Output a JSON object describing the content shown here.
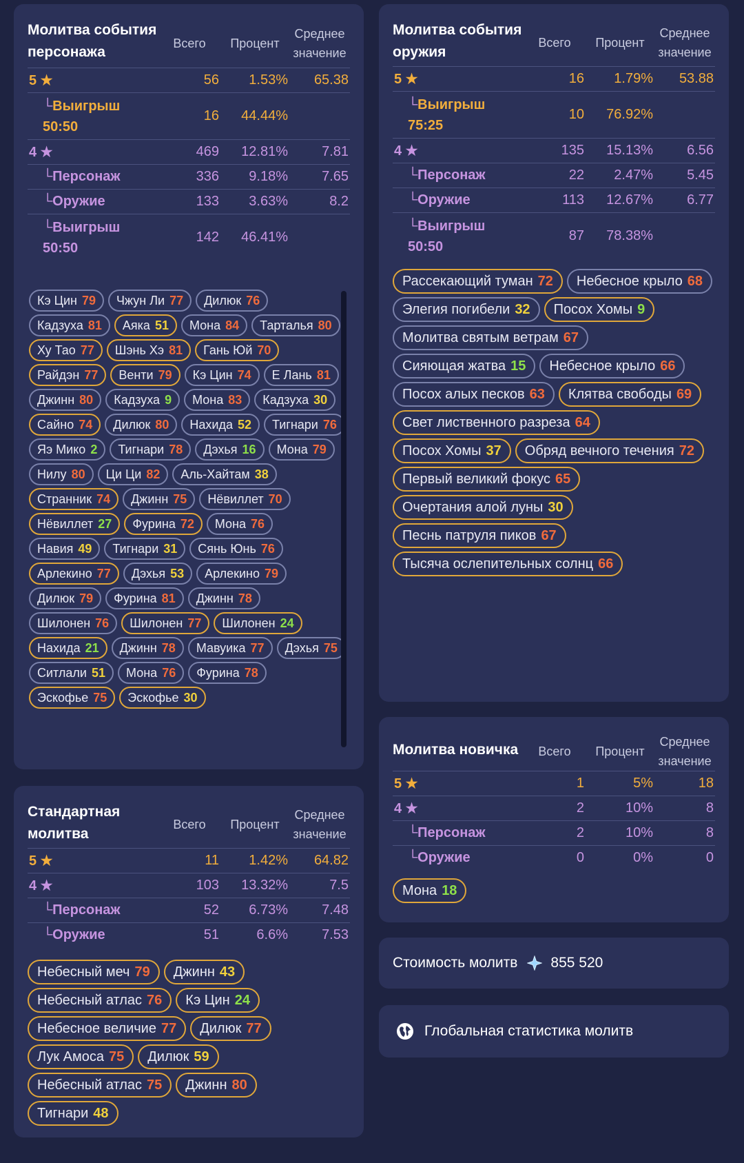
{
  "char_event": {
    "title": "Молитва события персонажа",
    "h_total": "Всего",
    "h_pct": "Процент",
    "h_avg": "Среднее значение",
    "r5": {
      "label": "5 ★",
      "total": "56",
      "pct": "1.53%",
      "avg": "65.38"
    },
    "r5w": {
      "label": "Выигрыш 50:50",
      "total": "16",
      "pct": "44.44%",
      "avg": ""
    },
    "r4": {
      "label": "4 ★",
      "total": "469",
      "pct": "12.81%",
      "avg": "7.81"
    },
    "r4c": {
      "label": "Персонаж",
      "total": "336",
      "pct": "9.18%",
      "avg": "7.65"
    },
    "r4w": {
      "label": "Оружие",
      "total": "133",
      "pct": "3.63%",
      "avg": "8.2"
    },
    "r4x": {
      "label": "Выигрыш 50:50",
      "total": "142",
      "pct": "46.41%",
      "avg": ""
    },
    "pulls": [
      {
        "name": "Кэ Цин",
        "n": "79",
        "c": "r",
        "g": false
      },
      {
        "name": "Чжун Ли",
        "n": "77",
        "c": "r",
        "g": false
      },
      {
        "name": "Дилюк",
        "n": "76",
        "c": "r",
        "g": false
      },
      {
        "name": "Кадзуха",
        "n": "81",
        "c": "r",
        "g": false
      },
      {
        "name": "Аяка",
        "n": "51",
        "c": "y",
        "g": true
      },
      {
        "name": "Мона",
        "n": "84",
        "c": "r",
        "g": false
      },
      {
        "name": "Тарталья",
        "n": "80",
        "c": "r",
        "g": false
      },
      {
        "name": "Ху Тао",
        "n": "77",
        "c": "r",
        "g": true
      },
      {
        "name": "Шэнь Хэ",
        "n": "81",
        "c": "r",
        "g": true
      },
      {
        "name": "Гань Юй",
        "n": "70",
        "c": "r",
        "g": true
      },
      {
        "name": "Райдэн",
        "n": "77",
        "c": "r",
        "g": true
      },
      {
        "name": "Венти",
        "n": "79",
        "c": "r",
        "g": true
      },
      {
        "name": "Кэ Цин",
        "n": "74",
        "c": "r",
        "g": false
      },
      {
        "name": "Е Лань",
        "n": "81",
        "c": "r",
        "g": false
      },
      {
        "name": "Джинн",
        "n": "80",
        "c": "r",
        "g": false
      },
      {
        "name": "Кадзуха",
        "n": "9",
        "c": "gr",
        "g": false
      },
      {
        "name": "Мона",
        "n": "83",
        "c": "r",
        "g": false
      },
      {
        "name": "Кадзуха",
        "n": "30",
        "c": "y",
        "g": false
      },
      {
        "name": "Сайно",
        "n": "74",
        "c": "r",
        "g": true
      },
      {
        "name": "Дилюк",
        "n": "80",
        "c": "r",
        "g": false
      },
      {
        "name": "Нахида",
        "n": "52",
        "c": "y",
        "g": false
      },
      {
        "name": "Тигнари",
        "n": "76",
        "c": "r",
        "g": false
      },
      {
        "name": "Яэ Мико",
        "n": "2",
        "c": "gr",
        "g": false
      },
      {
        "name": "Тигнари",
        "n": "78",
        "c": "r",
        "g": false
      },
      {
        "name": "Дэхья",
        "n": "16",
        "c": "gr",
        "g": false
      },
      {
        "name": "Мона",
        "n": "79",
        "c": "r",
        "g": false
      },
      {
        "name": "Нилу",
        "n": "80",
        "c": "r",
        "g": false
      },
      {
        "name": "Ци Ци",
        "n": "82",
        "c": "r",
        "g": false
      },
      {
        "name": "Аль-Хайтам",
        "n": "38",
        "c": "y",
        "g": false
      },
      {
        "name": "Странник",
        "n": "74",
        "c": "r",
        "g": true
      },
      {
        "name": "Джинн",
        "n": "75",
        "c": "r",
        "g": false
      },
      {
        "name": "Нёвиллет",
        "n": "70",
        "c": "r",
        "g": false
      },
      {
        "name": "Нёвиллет",
        "n": "27",
        "c": "gr",
        "g": true
      },
      {
        "name": "Фурина",
        "n": "72",
        "c": "r",
        "g": true
      },
      {
        "name": "Мона",
        "n": "76",
        "c": "r",
        "g": false
      },
      {
        "name": "Навия",
        "n": "49",
        "c": "y",
        "g": false
      },
      {
        "name": "Тигнари",
        "n": "31",
        "c": "y",
        "g": false
      },
      {
        "name": "Сянь Юнь",
        "n": "76",
        "c": "r",
        "g": false
      },
      {
        "name": "Арлекино",
        "n": "77",
        "c": "r",
        "g": true
      },
      {
        "name": "Дэхья",
        "n": "53",
        "c": "y",
        "g": false
      },
      {
        "name": "Арлекино",
        "n": "79",
        "c": "r",
        "g": false
      },
      {
        "name": "Дилюк",
        "n": "79",
        "c": "r",
        "g": false
      },
      {
        "name": "Фурина",
        "n": "81",
        "c": "r",
        "g": false
      },
      {
        "name": "Джинн",
        "n": "78",
        "c": "r",
        "g": false
      },
      {
        "name": "Шилонен",
        "n": "76",
        "c": "r",
        "g": false
      },
      {
        "name": "Шилонен",
        "n": "77",
        "c": "r",
        "g": true
      },
      {
        "name": "Шилонен",
        "n": "24",
        "c": "gr",
        "g": true
      },
      {
        "name": "Нахида",
        "n": "21",
        "c": "gr",
        "g": true
      },
      {
        "name": "Джинн",
        "n": "78",
        "c": "r",
        "g": false
      },
      {
        "name": "Мавуика",
        "n": "77",
        "c": "r",
        "g": false
      },
      {
        "name": "Дэхья",
        "n": "75",
        "c": "r",
        "g": false
      },
      {
        "name": "Ситлали",
        "n": "51",
        "c": "y",
        "g": false
      },
      {
        "name": "Мона",
        "n": "76",
        "c": "r",
        "g": false
      },
      {
        "name": "Фурина",
        "n": "78",
        "c": "r",
        "g": false
      },
      {
        "name": "Эскофье",
        "n": "75",
        "c": "r",
        "g": true
      },
      {
        "name": "Эскофье",
        "n": "30",
        "c": "y",
        "g": true
      }
    ]
  },
  "standard": {
    "title": "Стандартная молитва",
    "h_total": "Всего",
    "h_pct": "Процент",
    "h_avg": "Среднее значение",
    "r5": {
      "label": "5 ★",
      "total": "11",
      "pct": "1.42%",
      "avg": "64.82"
    },
    "r4": {
      "label": "4 ★",
      "total": "103",
      "pct": "13.32%",
      "avg": "7.5"
    },
    "r4c": {
      "label": "Персонаж",
      "total": "52",
      "pct": "6.73%",
      "avg": "7.48"
    },
    "r4w": {
      "label": "Оружие",
      "total": "51",
      "pct": "6.6%",
      "avg": "7.53"
    },
    "pulls": [
      {
        "name": "Небесный меч",
        "n": "79",
        "c": "r",
        "g": true
      },
      {
        "name": "Джинн",
        "n": "43",
        "c": "y",
        "g": true
      },
      {
        "name": "Небесный атлас",
        "n": "76",
        "c": "r",
        "g": true
      },
      {
        "name": "Кэ Цин",
        "n": "24",
        "c": "gr",
        "g": true
      },
      {
        "name": "Небесное величие",
        "n": "77",
        "c": "r",
        "g": true
      },
      {
        "name": "Дилюк",
        "n": "77",
        "c": "r",
        "g": true
      },
      {
        "name": "Лук Амоса",
        "n": "75",
        "c": "r",
        "g": true
      },
      {
        "name": "Дилюк",
        "n": "59",
        "c": "y",
        "g": true
      },
      {
        "name": "Небесный атлас",
        "n": "75",
        "c": "r",
        "g": true
      },
      {
        "name": "Джинн",
        "n": "80",
        "c": "r",
        "g": true
      },
      {
        "name": "Тигнари",
        "n": "48",
        "c": "y",
        "g": true
      }
    ]
  },
  "weapon_event": {
    "title": "Молитва события оружия",
    "h_total": "Всего",
    "h_pct": "Процент",
    "h_avg": "Среднее значение",
    "r5": {
      "label": "5 ★",
      "total": "16",
      "pct": "1.79%",
      "avg": "53.88"
    },
    "r5w": {
      "label": "Выигрыш 75:25",
      "total": "10",
      "pct": "76.92%",
      "avg": ""
    },
    "r4": {
      "label": "4 ★",
      "total": "135",
      "pct": "15.13%",
      "avg": "6.56"
    },
    "r4c": {
      "label": "Персонаж",
      "total": "22",
      "pct": "2.47%",
      "avg": "5.45"
    },
    "r4w": {
      "label": "Оружие",
      "total": "113",
      "pct": "12.67%",
      "avg": "6.77"
    },
    "r4x": {
      "label": "Выигрыш 50:50",
      "total": "87",
      "pct": "78.38%",
      "avg": ""
    },
    "pulls": [
      {
        "name": "Рассекающий туман",
        "n": "72",
        "c": "r",
        "g": true
      },
      {
        "name": "Небесное крыло",
        "n": "68",
        "c": "r",
        "g": false
      },
      {
        "name": "Элегия погибели",
        "n": "32",
        "c": "y",
        "g": false
      },
      {
        "name": "Посох Хомы",
        "n": "9",
        "c": "gr",
        "g": true
      },
      {
        "name": "Молитва святым ветрам",
        "n": "67",
        "c": "r",
        "g": false
      },
      {
        "name": "Сияющая жатва",
        "n": "15",
        "c": "gr",
        "g": false
      },
      {
        "name": "Небесное крыло",
        "n": "66",
        "c": "r",
        "g": false
      },
      {
        "name": "Посох алых песков",
        "n": "63",
        "c": "r",
        "g": false
      },
      {
        "name": "Клятва свободы",
        "n": "69",
        "c": "r",
        "g": true
      },
      {
        "name": "Свет лиственного разреза",
        "n": "64",
        "c": "r",
        "g": true
      },
      {
        "name": "Посох Хомы",
        "n": "37",
        "c": "y",
        "g": true
      },
      {
        "name": "Обряд вечного течения",
        "n": "72",
        "c": "r",
        "g": true
      },
      {
        "name": "Первый великий фокус",
        "n": "65",
        "c": "r",
        "g": true
      },
      {
        "name": "Очертания алой луны",
        "n": "30",
        "c": "y",
        "g": true
      },
      {
        "name": "Песнь патруля пиков",
        "n": "67",
        "c": "r",
        "g": true
      },
      {
        "name": "Тысяча ослепительных солнц",
        "n": "66",
        "c": "r",
        "g": true
      }
    ]
  },
  "beginner": {
    "title": "Молитва новичка",
    "h_total": "Всего",
    "h_pct": "Процент",
    "h_avg": "Среднее значение",
    "r5": {
      "label": "5 ★",
      "total": "1",
      "pct": "5%",
      "avg": "18"
    },
    "r4": {
      "label": "4 ★",
      "total": "2",
      "pct": "10%",
      "avg": "8"
    },
    "r4c": {
      "label": "Персонаж",
      "total": "2",
      "pct": "10%",
      "avg": "8"
    },
    "r4w": {
      "label": "Оружие",
      "total": "0",
      "pct": "0%",
      "avg": "0"
    },
    "pulls": [
      {
        "name": "Мона",
        "n": "18",
        "c": "gr",
        "g": true
      }
    ]
  },
  "cost": {
    "label": "Стоимость молитв",
    "icon": "primogem-icon",
    "value": "855 520"
  },
  "global": {
    "label": "Глобальная статистика молитв",
    "icon": "globe-icon"
  },
  "colors": {
    "bg": "#1e2341",
    "panel": "#2b3158",
    "five_star": "#f2ae3c",
    "four_star": "#c694e0",
    "red": "#f06b3c",
    "yellow": "#f0d13c",
    "green": "#8ee04a"
  }
}
